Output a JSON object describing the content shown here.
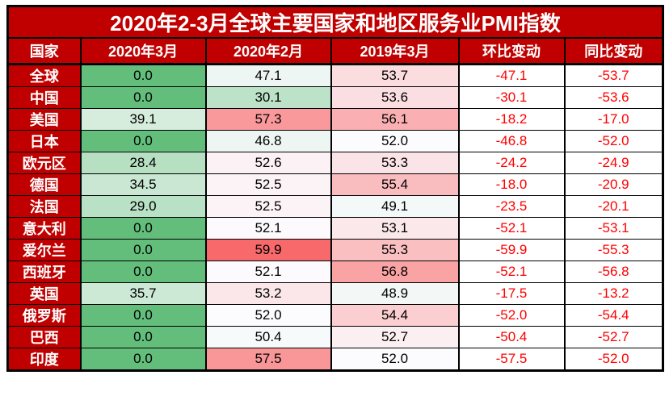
{
  "colors": {
    "header_bg": "#C00000",
    "header_text": "#FFFFFF",
    "change_text": "#FF0000",
    "value_text": "#000000",
    "border": "#000000",
    "scale": {
      "min_value": 0,
      "mid_value": 52.0,
      "max_value": 59.9,
      "min_color": "#63BE7B",
      "mid_color": "#FCFCFF",
      "max_color": "#F8696B"
    }
  },
  "chart_data": {
    "type": "table",
    "title": "2020年2-3月全球主要国家和地区服务业PMI指数",
    "columns": [
      "国家",
      "2020年3月",
      "2020年2月",
      "2019年3月",
      "环比变动",
      "同比变动"
    ],
    "value_columns_with_color_scale": [
      "2020年3月",
      "2020年2月",
      "2019年3月"
    ],
    "rows": [
      {
        "country": "全球",
        "values": [
          "0.0",
          "47.1",
          "53.7",
          "-47.1",
          "-53.7"
        ]
      },
      {
        "country": "中国",
        "values": [
          "0.0",
          "30.1",
          "53.6",
          "-30.1",
          "-53.6"
        ]
      },
      {
        "country": "美国",
        "values": [
          "39.1",
          "57.3",
          "56.1",
          "-18.2",
          "-17.0"
        ]
      },
      {
        "country": "日本",
        "values": [
          "0.0",
          "46.8",
          "52.0",
          "-46.8",
          "-52.0"
        ]
      },
      {
        "country": "欧元区",
        "values": [
          "28.4",
          "52.6",
          "53.3",
          "-24.2",
          "-24.9"
        ]
      },
      {
        "country": "德国",
        "values": [
          "34.5",
          "52.5",
          "55.4",
          "-18.0",
          "-20.9"
        ]
      },
      {
        "country": "法国",
        "values": [
          "29.0",
          "52.5",
          "49.1",
          "-23.5",
          "-20.1"
        ]
      },
      {
        "country": "意大利",
        "values": [
          "0.0",
          "52.1",
          "53.1",
          "-52.1",
          "-53.1"
        ]
      },
      {
        "country": "爱尔兰",
        "values": [
          "0.0",
          "59.9",
          "55.3",
          "-59.9",
          "-55.3"
        ]
      },
      {
        "country": "西班牙",
        "values": [
          "0.0",
          "52.1",
          "56.8",
          "-52.1",
          "-56.8"
        ]
      },
      {
        "country": "英国",
        "values": [
          "35.7",
          "53.2",
          "48.9",
          "-17.5",
          "-13.2"
        ]
      },
      {
        "country": "俄罗斯",
        "values": [
          "0.0",
          "52.0",
          "54.4",
          "-52.0",
          "-54.4"
        ]
      },
      {
        "country": "巴西",
        "values": [
          "0.0",
          "50.4",
          "52.7",
          "-50.4",
          "-52.7"
        ]
      },
      {
        "country": "印度",
        "values": [
          "0.0",
          "57.5",
          "52.0",
          "-57.5",
          "-52.0"
        ]
      }
    ]
  }
}
